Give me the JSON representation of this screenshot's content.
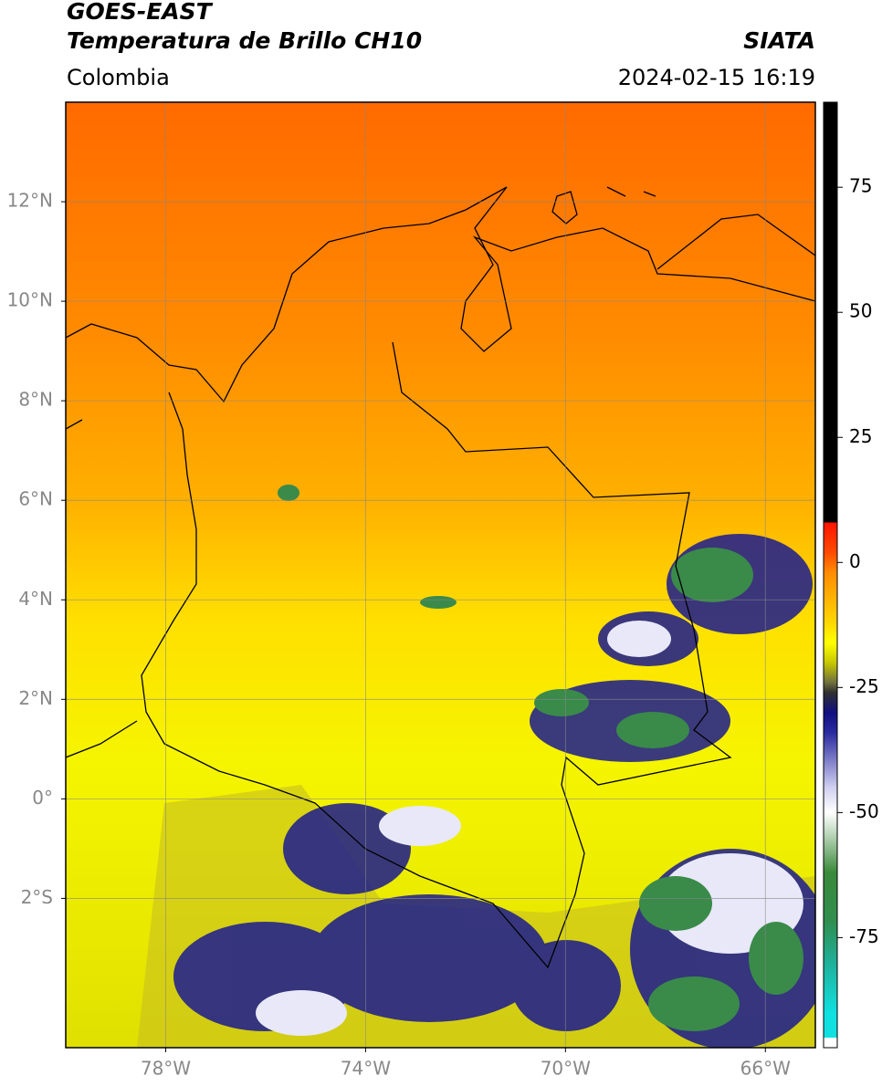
{
  "header": {
    "title": "GOES-EAST",
    "subtitle": "Temperatura de Brillo CH10",
    "source": "SIATA",
    "region": "Colombia",
    "timestamp": "2024-02-15 16:19"
  },
  "map": {
    "lon_range": [
      -80,
      -65
    ],
    "lat_range": [
      -5,
      14
    ],
    "grid": true,
    "lon_ticks": [
      {
        "value": -78,
        "label": "78°W"
      },
      {
        "value": -74,
        "label": "74°W"
      },
      {
        "value": -70,
        "label": "70°W"
      },
      {
        "value": -66,
        "label": "66°W"
      }
    ],
    "lat_ticks": [
      {
        "value": 12,
        "label": "12°N"
      },
      {
        "value": 10,
        "label": "10°N"
      },
      {
        "value": 8,
        "label": "8°N"
      },
      {
        "value": 6,
        "label": "6°N"
      },
      {
        "value": 4,
        "label": "4°N"
      },
      {
        "value": 2,
        "label": "2°N"
      },
      {
        "value": 0,
        "label": "0°"
      },
      {
        "value": -2,
        "label": "2°S"
      }
    ]
  },
  "colorbar": {
    "range": [
      -97,
      92
    ],
    "ticks": [
      75,
      50,
      25,
      0,
      -25,
      -50,
      -75
    ],
    "stops": [
      {
        "value": 92,
        "color": "#000000"
      },
      {
        "value": 8,
        "color": "#000000"
      },
      {
        "value": 8,
        "color": "#ff1400"
      },
      {
        "value": 2,
        "color": "#ff4a00"
      },
      {
        "value": -2,
        "color": "#ff8c00"
      },
      {
        "value": -12,
        "color": "#ffd700"
      },
      {
        "value": -16,
        "color": "#ffff00"
      },
      {
        "value": -20,
        "color": "#c8c800"
      },
      {
        "value": -24,
        "color": "#707040"
      },
      {
        "value": -26,
        "color": "#303030"
      },
      {
        "value": -30,
        "color": "#101080"
      },
      {
        "value": -34,
        "color": "#2a2aa0"
      },
      {
        "value": -45,
        "color": "#d0d0f0"
      },
      {
        "value": -50,
        "color": "#ffffff"
      },
      {
        "value": -55,
        "color": "#b0d0b0"
      },
      {
        "value": -62,
        "color": "#3a8a3a"
      },
      {
        "value": -72,
        "color": "#2f8f50"
      },
      {
        "value": -80,
        "color": "#20b09a"
      },
      {
        "value": -90,
        "color": "#10e0e0"
      },
      {
        "value": -95,
        "color": "#10e0e0"
      },
      {
        "value": -95,
        "color": "#ffffff"
      },
      {
        "value": -97,
        "color": "#ffffff"
      }
    ]
  }
}
